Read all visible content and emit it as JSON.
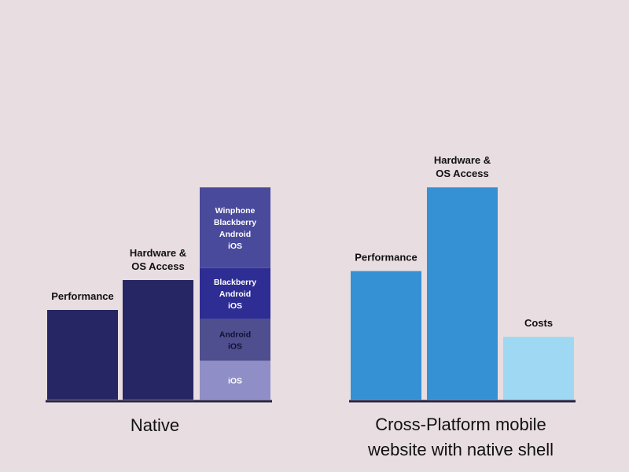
{
  "chart_data": [
    {
      "type": "bar",
      "title": "Native",
      "colors": {
        "bar": "#272664",
        "seg_ios": "#8f8ec6",
        "seg_android": "#4f4e8e",
        "seg_blackberry": "#2e2d94",
        "seg_winphone": "#4a4a9c",
        "axis": "#222244"
      },
      "bars": [
        {
          "label_lines": [
            "Performance"
          ],
          "value": 3.0
        },
        {
          "label_lines": [
            "Hardware &",
            "OS Access"
          ],
          "value": 4.0
        },
        {
          "label_lines": [],
          "stacked": true,
          "segments": [
            {
              "label_lines": [
                "iOS"
              ],
              "value": 1.3,
              "color_key": "seg_ios",
              "text_color": "#ffffff"
            },
            {
              "label_lines": [
                "Android",
                "iOS"
              ],
              "value": 1.4,
              "color_key": "seg_android",
              "text_color": "#111133"
            },
            {
              "label_lines": [
                "Blackberry",
                "Android",
                "iOS"
              ],
              "value": 1.7,
              "color_key": "seg_blackberry",
              "text_color": "#ffffff"
            },
            {
              "label_lines": [
                "Winphone",
                "Blackberry",
                "Android",
                "iOS"
              ],
              "value": 2.7,
              "color_key": "seg_winphone",
              "text_color": "#ffffff"
            }
          ]
        }
      ]
    },
    {
      "type": "bar",
      "title_lines": [
        "Cross-Platform mobile",
        "website with native shell"
      ],
      "colors": {
        "axis": "#222244"
      },
      "bars": [
        {
          "label_lines": [
            "Performance"
          ],
          "value": 4.3,
          "color": "#3591d3"
        },
        {
          "label_lines": [
            "Hardware &",
            "OS Access"
          ],
          "value": 7.1,
          "color": "#3591d3"
        },
        {
          "label_lines": [
            "Costs"
          ],
          "value": 2.1,
          "color": "#9fd8f3"
        }
      ]
    }
  ]
}
